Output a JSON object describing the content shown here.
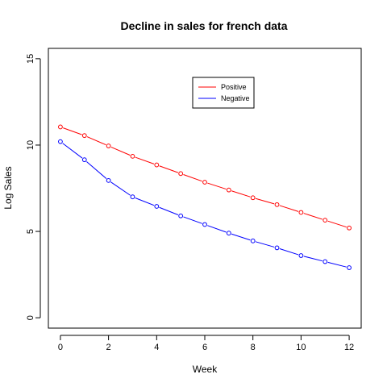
{
  "chart_data": {
    "type": "line",
    "title": "Decline in sales for french data",
    "xlabel": "Week",
    "ylabel": "Log Sales",
    "xlim": [
      -0.5,
      12.5
    ],
    "ylim": [
      -0.6,
      15.6
    ],
    "x_ticks": [
      0,
      2,
      4,
      6,
      8,
      10,
      12
    ],
    "y_ticks": [
      0,
      5,
      10,
      15
    ],
    "grid": false,
    "legend_position": "top-center",
    "x": [
      0,
      1,
      2,
      3,
      4,
      5,
      6,
      7,
      8,
      9,
      10,
      11,
      12
    ],
    "series": [
      {
        "name": "Positive",
        "color": "#ff0000",
        "values": [
          11.05,
          10.55,
          9.95,
          9.35,
          8.85,
          8.35,
          7.85,
          7.4,
          6.95,
          6.55,
          6.1,
          5.65,
          5.2
        ]
      },
      {
        "name": "Negative",
        "color": "#0000ff",
        "values": [
          10.2,
          9.15,
          7.95,
          7.0,
          6.45,
          5.9,
          5.4,
          4.9,
          4.45,
          4.05,
          3.6,
          3.25,
          2.9
        ]
      }
    ]
  }
}
